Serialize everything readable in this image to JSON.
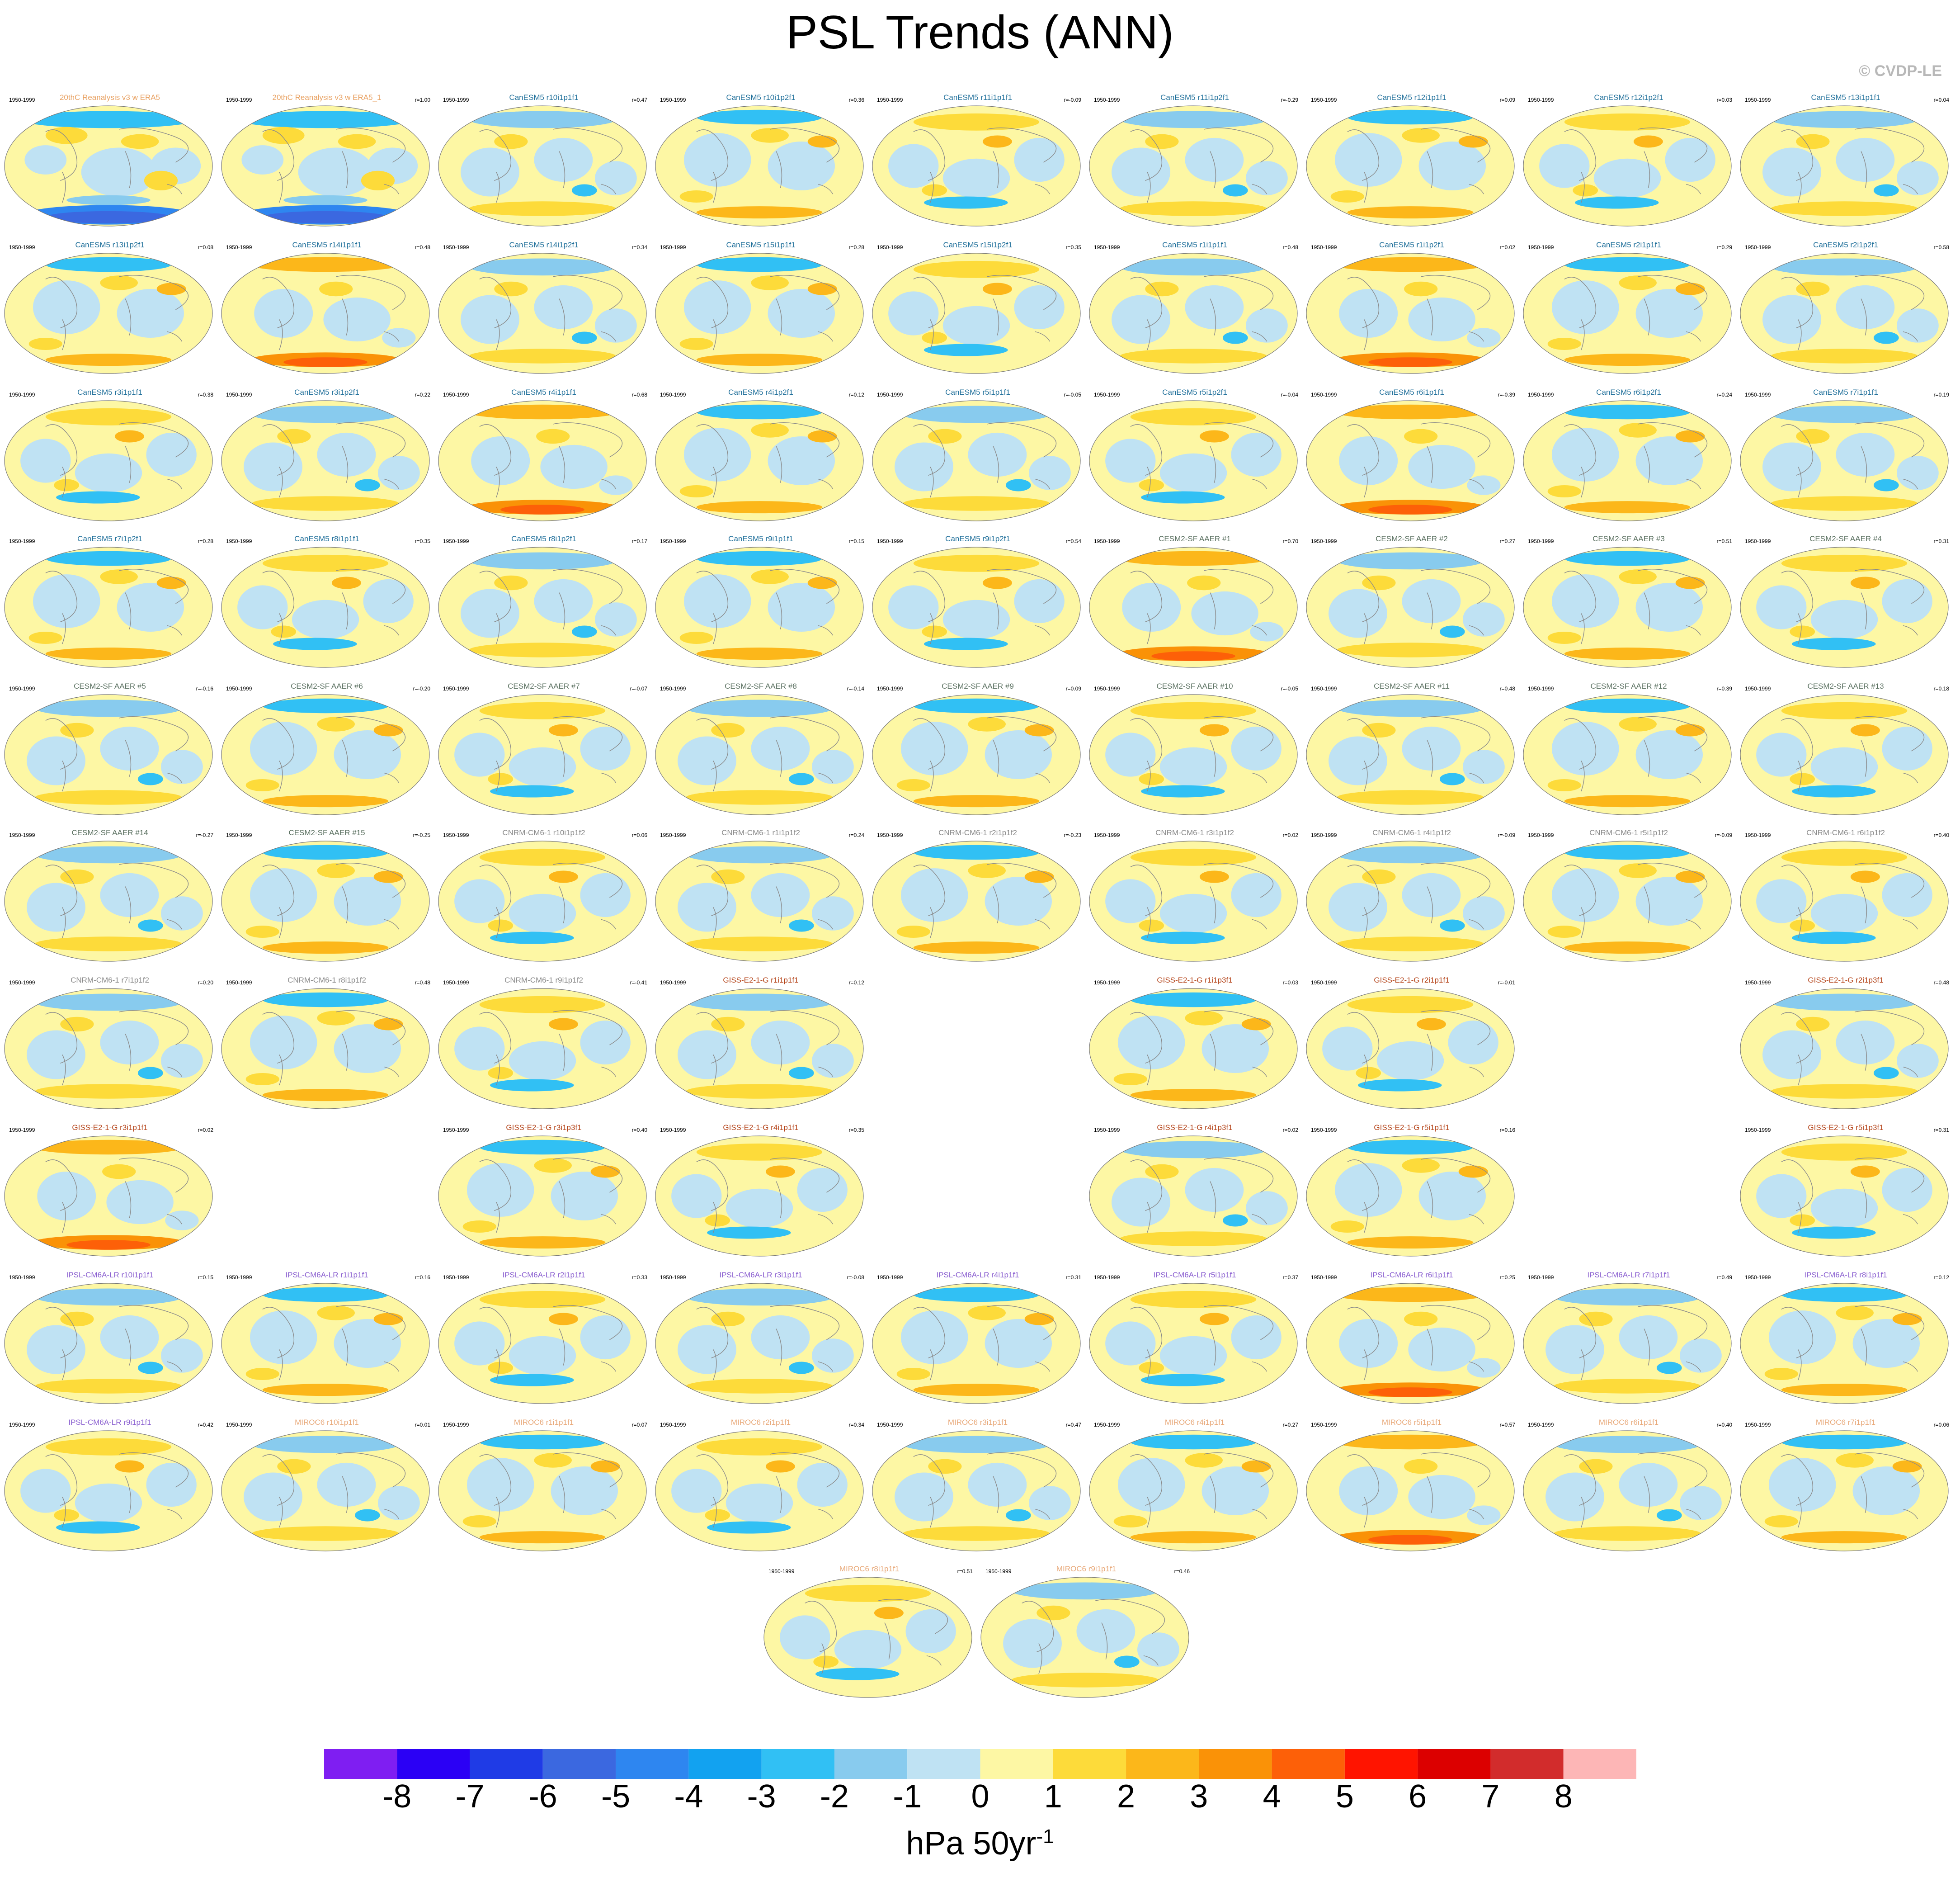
{
  "title": "PSL Trends (ANN)",
  "copyright": "© CVDP-LE",
  "chart_data": {
    "type": "heatmap",
    "title": "PSL Trends (ANN)",
    "period": "1950-1999",
    "units_main": "hPa 50yr",
    "units_sup": "-1",
    "colorbar": {
      "levels": [
        -8,
        -7,
        -6,
        -5,
        -4,
        -3,
        -2,
        -1,
        0,
        1,
        2,
        3,
        4,
        5,
        6,
        7,
        8
      ],
      "colors": [
        "#7f1ef2",
        "#2b00f5",
        "#1f3be6",
        "#3b68e0",
        "#2e86f0",
        "#12a2f0",
        "#31c0f4",
        "#88cbee",
        "#bfe2f3",
        "#fdf7a4",
        "#fddb3a",
        "#fcb71a",
        "#fa9207",
        "#fd6008",
        "#ff1400",
        "#dc0000",
        "#d22c2c",
        "#fdb6b6"
      ]
    },
    "panels": [
      {
        "row": 0,
        "col": 0,
        "title": "20thC Reanalysis v3 w ERA5",
        "r": "",
        "color": "#e8a060",
        "style": "obs"
      },
      {
        "row": 0,
        "col": 1,
        "title": "20thC Reanalysis v3 w ERA5_1",
        "r": "r=1.00",
        "color": "#e8a060",
        "style": "obs"
      },
      {
        "row": 0,
        "col": 2,
        "title": "CanESM5 r10i1p1f1",
        "r": "r=0.47",
        "color": "#1f6f9a",
        "style": "a"
      },
      {
        "row": 0,
        "col": 3,
        "title": "CanESM5 r10i1p2f1",
        "r": "r=0.36",
        "color": "#1f6f9a",
        "style": "b"
      },
      {
        "row": 0,
        "col": 4,
        "title": "CanESM5 r11i1p1f1",
        "r": "r=-0.09",
        "color": "#1f6f9a",
        "style": "c"
      },
      {
        "row": 0,
        "col": 5,
        "title": "CanESM5 r11i1p2f1",
        "r": "r=-0.29",
        "color": "#1f6f9a",
        "style": "a"
      },
      {
        "row": 0,
        "col": 6,
        "title": "CanESM5 r12i1p1f1",
        "r": "r=0.09",
        "color": "#1f6f9a",
        "style": "b"
      },
      {
        "row": 0,
        "col": 7,
        "title": "CanESM5 r12i1p2f1",
        "r": "r=0.03",
        "color": "#1f6f9a",
        "style": "c"
      },
      {
        "row": 0,
        "col": 8,
        "title": "CanESM5 r13i1p1f1",
        "r": "r=0.04",
        "color": "#1f6f9a",
        "style": "a"
      },
      {
        "row": 1,
        "col": 0,
        "title": "CanESM5 r13i1p2f1",
        "r": "r=0.08",
        "color": "#1f6f9a",
        "style": "b"
      },
      {
        "row": 1,
        "col": 1,
        "title": "CanESM5 r14i1p1f1",
        "r": "r=0.48",
        "color": "#1f6f9a",
        "style": "d"
      },
      {
        "row": 1,
        "col": 2,
        "title": "CanESM5 r14i1p2f1",
        "r": "r=0.34",
        "color": "#1f6f9a",
        "style": "a"
      },
      {
        "row": 1,
        "col": 3,
        "title": "CanESM5 r15i1p1f1",
        "r": "r=0.28",
        "color": "#1f6f9a",
        "style": "b"
      },
      {
        "row": 1,
        "col": 4,
        "title": "CanESM5 r15i1p2f1",
        "r": "r=0.35",
        "color": "#1f6f9a",
        "style": "c"
      },
      {
        "row": 1,
        "col": 5,
        "title": "CanESM5 r1i1p1f1",
        "r": "r=0.48",
        "color": "#1f6f9a",
        "style": "a"
      },
      {
        "row": 1,
        "col": 6,
        "title": "CanESM5 r1i1p2f1",
        "r": "r=0.02",
        "color": "#1f6f9a",
        "style": "d"
      },
      {
        "row": 1,
        "col": 7,
        "title": "CanESM5 r2i1p1f1",
        "r": "r=0.29",
        "color": "#1f6f9a",
        "style": "b"
      },
      {
        "row": 1,
        "col": 8,
        "title": "CanESM5 r2i1p2f1",
        "r": "r=0.58",
        "color": "#1f6f9a",
        "style": "a"
      },
      {
        "row": 2,
        "col": 0,
        "title": "CanESM5 r3i1p1f1",
        "r": "r=0.38",
        "color": "#1f6f9a",
        "style": "c"
      },
      {
        "row": 2,
        "col": 1,
        "title": "CanESM5 r3i1p2f1",
        "r": "r=0.22",
        "color": "#1f6f9a",
        "style": "a"
      },
      {
        "row": 2,
        "col": 2,
        "title": "CanESM5 r4i1p1f1",
        "r": "r=0.68",
        "color": "#1f6f9a",
        "style": "d"
      },
      {
        "row": 2,
        "col": 3,
        "title": "CanESM5 r4i1p2f1",
        "r": "r=0.12",
        "color": "#1f6f9a",
        "style": "b"
      },
      {
        "row": 2,
        "col": 4,
        "title": "CanESM5 r5i1p1f1",
        "r": "r=-0.05",
        "color": "#1f6f9a",
        "style": "a"
      },
      {
        "row": 2,
        "col": 5,
        "title": "CanESM5 r5i1p2f1",
        "r": "r=-0.04",
        "color": "#1f6f9a",
        "style": "c"
      },
      {
        "row": 2,
        "col": 6,
        "title": "CanESM5 r6i1p1f1",
        "r": "r=-0.39",
        "color": "#1f6f9a",
        "style": "d"
      },
      {
        "row": 2,
        "col": 7,
        "title": "CanESM5 r6i1p2f1",
        "r": "r=0.24",
        "color": "#1f6f9a",
        "style": "b"
      },
      {
        "row": 2,
        "col": 8,
        "title": "CanESM5 r7i1p1f1",
        "r": "r=0.19",
        "color": "#1f6f9a",
        "style": "a"
      },
      {
        "row": 3,
        "col": 0,
        "title": "CanESM5 r7i1p2f1",
        "r": "r=0.28",
        "color": "#1f6f9a",
        "style": "b"
      },
      {
        "row": 3,
        "col": 1,
        "title": "CanESM5 r8i1p1f1",
        "r": "r=0.35",
        "color": "#1f6f9a",
        "style": "c"
      },
      {
        "row": 3,
        "col": 2,
        "title": "CanESM5 r8i1p2f1",
        "r": "r=0.17",
        "color": "#1f6f9a",
        "style": "a"
      },
      {
        "row": 3,
        "col": 3,
        "title": "CanESM5 r9i1p1f1",
        "r": "r=0.15",
        "color": "#1f6f9a",
        "style": "b"
      },
      {
        "row": 3,
        "col": 4,
        "title": "CanESM5 r9i1p2f1",
        "r": "r=0.54",
        "color": "#1f6f9a",
        "style": "c"
      },
      {
        "row": 3,
        "col": 5,
        "title": "CESM2-SF AAER #1",
        "r": "r=0.70",
        "color": "#5a7060",
        "style": "d"
      },
      {
        "row": 3,
        "col": 6,
        "title": "CESM2-SF AAER #2",
        "r": "r=0.27",
        "color": "#5a7060",
        "style": "a"
      },
      {
        "row": 3,
        "col": 7,
        "title": "CESM2-SF AAER #3",
        "r": "r=0.51",
        "color": "#5a7060",
        "style": "b"
      },
      {
        "row": 3,
        "col": 8,
        "title": "CESM2-SF AAER #4",
        "r": "r=0.31",
        "color": "#5a7060",
        "style": "c"
      },
      {
        "row": 4,
        "col": 0,
        "title": "CESM2-SF AAER #5",
        "r": "r=-0.16",
        "color": "#5a7060",
        "style": "a"
      },
      {
        "row": 4,
        "col": 1,
        "title": "CESM2-SF AAER #6",
        "r": "r=-0.20",
        "color": "#5a7060",
        "style": "b"
      },
      {
        "row": 4,
        "col": 2,
        "title": "CESM2-SF AAER #7",
        "r": "r=-0.07",
        "color": "#5a7060",
        "style": "c"
      },
      {
        "row": 4,
        "col": 3,
        "title": "CESM2-SF AAER #8",
        "r": "r=-0.14",
        "color": "#5a7060",
        "style": "a"
      },
      {
        "row": 4,
        "col": 4,
        "title": "CESM2-SF AAER #9",
        "r": "r=0.09",
        "color": "#5a7060",
        "style": "b"
      },
      {
        "row": 4,
        "col": 5,
        "title": "CESM2-SF AAER #10",
        "r": "r=-0.05",
        "color": "#5a7060",
        "style": "c"
      },
      {
        "row": 4,
        "col": 6,
        "title": "CESM2-SF AAER #11",
        "r": "r=0.48",
        "color": "#5a7060",
        "style": "a"
      },
      {
        "row": 4,
        "col": 7,
        "title": "CESM2-SF AAER #12",
        "r": "r=0.39",
        "color": "#5a7060",
        "style": "b"
      },
      {
        "row": 4,
        "col": 8,
        "title": "CESM2-SF AAER #13",
        "r": "r=0.18",
        "color": "#5a7060",
        "style": "c"
      },
      {
        "row": 5,
        "col": 0,
        "title": "CESM2-SF AAER #14",
        "r": "r=-0.27",
        "color": "#5a7060",
        "style": "a"
      },
      {
        "row": 5,
        "col": 1,
        "title": "CESM2-SF AAER #15",
        "r": "r=-0.25",
        "color": "#5a7060",
        "style": "b"
      },
      {
        "row": 5,
        "col": 2,
        "title": "CNRM-CM6-1 r10i1p1f2",
        "r": "r=0.06",
        "color": "#8a8a8a",
        "style": "c"
      },
      {
        "row": 5,
        "col": 3,
        "title": "CNRM-CM6-1 r1i1p1f2",
        "r": "r=0.24",
        "color": "#8a8a8a",
        "style": "a"
      },
      {
        "row": 5,
        "col": 4,
        "title": "CNRM-CM6-1 r2i1p1f2",
        "r": "r=-0.23",
        "color": "#8a8a8a",
        "style": "b"
      },
      {
        "row": 5,
        "col": 5,
        "title": "CNRM-CM6-1 r3i1p1f2",
        "r": "r=0.02",
        "color": "#8a8a8a",
        "style": "c"
      },
      {
        "row": 5,
        "col": 6,
        "title": "CNRM-CM6-1 r4i1p1f2",
        "r": "r=-0.09",
        "color": "#8a8a8a",
        "style": "a"
      },
      {
        "row": 5,
        "col": 7,
        "title": "CNRM-CM6-1 r5i1p1f2",
        "r": "r=-0.09",
        "color": "#8a8a8a",
        "style": "b"
      },
      {
        "row": 5,
        "col": 8,
        "title": "CNRM-CM6-1 r6i1p1f2",
        "r": "r=0.40",
        "color": "#8a8a8a",
        "style": "c"
      },
      {
        "row": 6,
        "col": 0,
        "title": "CNRM-CM6-1 r7i1p1f2",
        "r": "r=0.20",
        "color": "#8a8a8a",
        "style": "a"
      },
      {
        "row": 6,
        "col": 1,
        "title": "CNRM-CM6-1 r8i1p1f2",
        "r": "r=0.48",
        "color": "#8a8a8a",
        "style": "b"
      },
      {
        "row": 6,
        "col": 2,
        "title": "CNRM-CM6-1 r9i1p1f2",
        "r": "r=-0.41",
        "color": "#8a8a8a",
        "style": "c"
      },
      {
        "row": 6,
        "col": 3,
        "title": "GISS-E2-1-G r1i1p1f1",
        "r": "r=0.12",
        "color": "#b5451b",
        "style": "a"
      },
      {
        "row": 6,
        "col": 5,
        "title": "GISS-E2-1-G r1i1p3f1",
        "r": "r=0.03",
        "color": "#b5451b",
        "style": "b"
      },
      {
        "row": 6,
        "col": 6,
        "title": "GISS-E2-1-G r2i1p1f1",
        "r": "r=-0.01",
        "color": "#b5451b",
        "style": "c"
      },
      {
        "row": 6,
        "col": 8,
        "title": "GISS-E2-1-G r2i1p3f1",
        "r": "r=0.48",
        "color": "#b5451b",
        "style": "a"
      },
      {
        "row": 7,
        "col": 0,
        "title": "GISS-E2-1-G r3i1p1f1",
        "r": "r=0.02",
        "color": "#b5451b",
        "style": "d"
      },
      {
        "row": 7,
        "col": 2,
        "title": "GISS-E2-1-G r3i1p3f1",
        "r": "r=0.40",
        "color": "#b5451b",
        "style": "b"
      },
      {
        "row": 7,
        "col": 3,
        "title": "GISS-E2-1-G r4i1p1f1",
        "r": "r=0.35",
        "color": "#b5451b",
        "style": "c"
      },
      {
        "row": 7,
        "col": 5,
        "title": "GISS-E2-1-G r4i1p3f1",
        "r": "r=0.02",
        "color": "#b5451b",
        "style": "a"
      },
      {
        "row": 7,
        "col": 6,
        "title": "GISS-E2-1-G r5i1p1f1",
        "r": "r=0.16",
        "color": "#b5451b",
        "style": "b"
      },
      {
        "row": 7,
        "col": 8,
        "title": "GISS-E2-1-G r5i1p3f1",
        "r": "r=0.31",
        "color": "#b5451b",
        "style": "c"
      },
      {
        "row": 8,
        "col": 0,
        "title": "IPSL-CM6A-LR r10i1p1f1",
        "r": "r=0.15",
        "color": "#8a5fd0",
        "style": "a"
      },
      {
        "row": 8,
        "col": 1,
        "title": "IPSL-CM6A-LR r1i1p1f1",
        "r": "r=0.16",
        "color": "#8a5fd0",
        "style": "b"
      },
      {
        "row": 8,
        "col": 2,
        "title": "IPSL-CM6A-LR r2i1p1f1",
        "r": "r=0.33",
        "color": "#8a5fd0",
        "style": "c"
      },
      {
        "row": 8,
        "col": 3,
        "title": "IPSL-CM6A-LR r3i1p1f1",
        "r": "r=-0.08",
        "color": "#8a5fd0",
        "style": "a"
      },
      {
        "row": 8,
        "col": 4,
        "title": "IPSL-CM6A-LR r4i1p1f1",
        "r": "r=0.31",
        "color": "#8a5fd0",
        "style": "b"
      },
      {
        "row": 8,
        "col": 5,
        "title": "IPSL-CM6A-LR r5i1p1f1",
        "r": "r=0.37",
        "color": "#8a5fd0",
        "style": "c"
      },
      {
        "row": 8,
        "col": 6,
        "title": "IPSL-CM6A-LR r6i1p1f1",
        "r": "r=0.25",
        "color": "#8a5fd0",
        "style": "d"
      },
      {
        "row": 8,
        "col": 7,
        "title": "IPSL-CM6A-LR r7i1p1f1",
        "r": "r=0.49",
        "color": "#8a5fd0",
        "style": "a"
      },
      {
        "row": 8,
        "col": 8,
        "title": "IPSL-CM6A-LR r8i1p1f1",
        "r": "r=0.12",
        "color": "#8a5fd0",
        "style": "b"
      },
      {
        "row": 9,
        "col": 0,
        "title": "IPSL-CM6A-LR r9i1p1f1",
        "r": "r=0.42",
        "color": "#8a5fd0",
        "style": "c"
      },
      {
        "row": 9,
        "col": 1,
        "title": "MIROC6 r10i1p1f1",
        "r": "r=0.01",
        "color": "#e8a878",
        "style": "a"
      },
      {
        "row": 9,
        "col": 2,
        "title": "MIROC6 r1i1p1f1",
        "r": "r=0.07",
        "color": "#e8a878",
        "style": "b"
      },
      {
        "row": 9,
        "col": 3,
        "title": "MIROC6 r2i1p1f1",
        "r": "r=0.34",
        "color": "#e8a878",
        "style": "c"
      },
      {
        "row": 9,
        "col": 4,
        "title": "MIROC6 r3i1p1f1",
        "r": "r=0.47",
        "color": "#e8a878",
        "style": "a"
      },
      {
        "row": 9,
        "col": 5,
        "title": "MIROC6 r4i1p1f1",
        "r": "r=0.27",
        "color": "#e8a878",
        "style": "b"
      },
      {
        "row": 9,
        "col": 6,
        "title": "MIROC6 r5i1p1f1",
        "r": "r=0.57",
        "color": "#e8a878",
        "style": "d"
      },
      {
        "row": 9,
        "col": 7,
        "title": "MIROC6 r6i1p1f1",
        "r": "r=0.40",
        "color": "#e8a878",
        "style": "a"
      },
      {
        "row": 9,
        "col": 8,
        "title": "MIROC6 r7i1p1f1",
        "r": "r=0.06",
        "color": "#e8a878",
        "style": "b"
      },
      {
        "row": 10,
        "col": 3.5,
        "title": "MIROC6 r8i1p1f1",
        "r": "r=0.51",
        "color": "#e8a878",
        "style": "c"
      },
      {
        "row": 10,
        "col": 4.5,
        "title": "MIROC6 r9i1p1f1",
        "r": "r=0.46",
        "color": "#e8a878",
        "style": "a"
      }
    ]
  }
}
